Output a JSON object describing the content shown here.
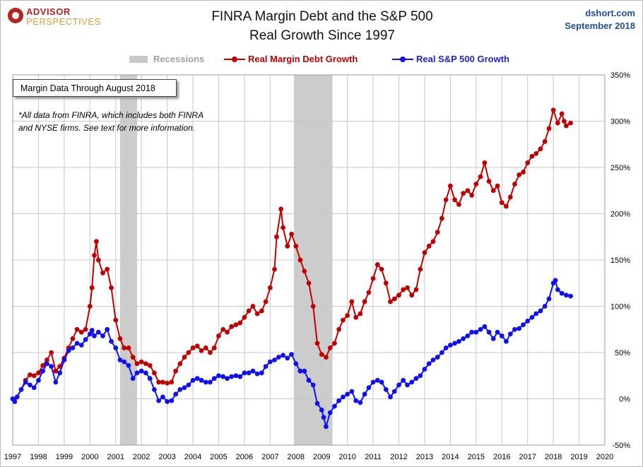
{
  "logo": {
    "line1": "ADVISOR",
    "line2": "PERSPECTIVES"
  },
  "title_line1": "FINRA Margin Debt and the S&P 500",
  "title_line2": "Real Growth Since 1997",
  "source_line1": "dshort.com",
  "source_line2": "September 2018",
  "legend": {
    "recessions": "Recessions",
    "margin": "Real Margin Debt Growth",
    "sp500": "Real S&P 500 Growth"
  },
  "info_box": "Margin Data Through August 2018",
  "note_line1": "*All data from FINRA, which includes both FINRA",
  "note_line2": "and NYSE firms. See text for more information.",
  "colors": {
    "margin": "#c00000",
    "sp500": "#1010ee",
    "recession": "#cccccc",
    "grid": "#c8c8c8"
  },
  "chart_data": {
    "type": "line",
    "x_tick_labels": [
      "1997",
      "1998",
      "1999",
      "2000",
      "2001",
      "2002",
      "2003",
      "2004",
      "2005",
      "2006",
      "2007",
      "2008",
      "2009",
      "2010",
      "2011",
      "2012",
      "2013",
      "2014",
      "2015",
      "2016",
      "2017",
      "2018",
      "2019",
      "2020"
    ],
    "xlim": [
      1997,
      2020
    ],
    "ylim": [
      -50,
      350
    ],
    "y_ticks": [
      -50,
      0,
      50,
      100,
      150,
      200,
      250,
      300,
      350
    ],
    "y_tick_labels": [
      "-50%",
      "0%",
      "50%",
      "100%",
      "150%",
      "200%",
      "250%",
      "300%",
      "350%"
    ],
    "grid": true,
    "legend_position": "top",
    "recessions": [
      [
        2001.17,
        2001.83
      ],
      [
        2007.92,
        2009.42
      ]
    ],
    "series": [
      {
        "name": "Real Margin Debt Growth",
        "key": "margin",
        "points": [
          [
            1997.0,
            0
          ],
          [
            1997.17,
            2
          ],
          [
            1997.33,
            10
          ],
          [
            1997.5,
            20
          ],
          [
            1997.67,
            26
          ],
          [
            1997.83,
            25
          ],
          [
            1998.0,
            28
          ],
          [
            1998.17,
            36
          ],
          [
            1998.33,
            42
          ],
          [
            1998.5,
            50
          ],
          [
            1998.67,
            30
          ],
          [
            1998.83,
            35
          ],
          [
            1999.0,
            44
          ],
          [
            1999.17,
            55
          ],
          [
            1999.33,
            65
          ],
          [
            1999.5,
            75
          ],
          [
            1999.67,
            72
          ],
          [
            1999.83,
            75
          ],
          [
            2000.0,
            100
          ],
          [
            2000.08,
            120
          ],
          [
            2000.17,
            155
          ],
          [
            2000.25,
            170
          ],
          [
            2000.33,
            150
          ],
          [
            2000.5,
            136
          ],
          [
            2000.67,
            140
          ],
          [
            2000.83,
            120
          ],
          [
            2001.0,
            85
          ],
          [
            2001.17,
            65
          ],
          [
            2001.33,
            55
          ],
          [
            2001.5,
            55
          ],
          [
            2001.67,
            45
          ],
          [
            2001.83,
            38
          ],
          [
            2002.0,
            40
          ],
          [
            2002.17,
            38
          ],
          [
            2002.33,
            36
          ],
          [
            2002.5,
            28
          ],
          [
            2002.67,
            18
          ],
          [
            2002.83,
            18
          ],
          [
            2003.0,
            17
          ],
          [
            2003.17,
            18
          ],
          [
            2003.33,
            30
          ],
          [
            2003.5,
            38
          ],
          [
            2003.67,
            45
          ],
          [
            2003.83,
            50
          ],
          [
            2004.0,
            55
          ],
          [
            2004.17,
            57
          ],
          [
            2004.33,
            52
          ],
          [
            2004.5,
            55
          ],
          [
            2004.67,
            50
          ],
          [
            2004.83,
            55
          ],
          [
            2005.0,
            68
          ],
          [
            2005.17,
            75
          ],
          [
            2005.33,
            72
          ],
          [
            2005.5,
            78
          ],
          [
            2005.67,
            80
          ],
          [
            2005.83,
            82
          ],
          [
            2006.0,
            88
          ],
          [
            2006.17,
            95
          ],
          [
            2006.33,
            100
          ],
          [
            2006.5,
            92
          ],
          [
            2006.67,
            95
          ],
          [
            2006.83,
            105
          ],
          [
            2007.0,
            120
          ],
          [
            2007.17,
            140
          ],
          [
            2007.25,
            175
          ],
          [
            2007.42,
            205
          ],
          [
            2007.5,
            185
          ],
          [
            2007.67,
            165
          ],
          [
            2007.83,
            178
          ],
          [
            2008.0,
            165
          ],
          [
            2008.17,
            150
          ],
          [
            2008.33,
            138
          ],
          [
            2008.5,
            125
          ],
          [
            2008.67,
            100
          ],
          [
            2008.83,
            60
          ],
          [
            2009.0,
            48
          ],
          [
            2009.17,
            45
          ],
          [
            2009.33,
            55
          ],
          [
            2009.5,
            60
          ],
          [
            2009.67,
            75
          ],
          [
            2009.83,
            85
          ],
          [
            2010.0,
            90
          ],
          [
            2010.17,
            105
          ],
          [
            2010.33,
            88
          ],
          [
            2010.5,
            92
          ],
          [
            2010.67,
            105
          ],
          [
            2010.83,
            115
          ],
          [
            2011.0,
            130
          ],
          [
            2011.17,
            145
          ],
          [
            2011.33,
            140
          ],
          [
            2011.5,
            125
          ],
          [
            2011.67,
            105
          ],
          [
            2011.83,
            108
          ],
          [
            2012.0,
            112
          ],
          [
            2012.17,
            118
          ],
          [
            2012.33,
            120
          ],
          [
            2012.5,
            112
          ],
          [
            2012.67,
            118
          ],
          [
            2012.83,
            140
          ],
          [
            2013.0,
            158
          ],
          [
            2013.17,
            165
          ],
          [
            2013.33,
            170
          ],
          [
            2013.5,
            180
          ],
          [
            2013.67,
            195
          ],
          [
            2013.83,
            215
          ],
          [
            2014.0,
            230
          ],
          [
            2014.17,
            215
          ],
          [
            2014.33,
            210
          ],
          [
            2014.5,
            222
          ],
          [
            2014.67,
            225
          ],
          [
            2014.83,
            220
          ],
          [
            2015.0,
            232
          ],
          [
            2015.17,
            240
          ],
          [
            2015.33,
            255
          ],
          [
            2015.5,
            235
          ],
          [
            2015.67,
            225
          ],
          [
            2015.83,
            230
          ],
          [
            2016.0,
            212
          ],
          [
            2016.17,
            208
          ],
          [
            2016.33,
            218
          ],
          [
            2016.5,
            232
          ],
          [
            2016.67,
            242
          ],
          [
            2016.83,
            245
          ],
          [
            2017.0,
            255
          ],
          [
            2017.17,
            262
          ],
          [
            2017.33,
            265
          ],
          [
            2017.5,
            270
          ],
          [
            2017.67,
            278
          ],
          [
            2017.83,
            292
          ],
          [
            2018.0,
            312
          ],
          [
            2018.17,
            298
          ],
          [
            2018.33,
            308
          ],
          [
            2018.42,
            300
          ],
          [
            2018.5,
            295
          ],
          [
            2018.67,
            298
          ]
        ]
      },
      {
        "name": "Real S&P 500 Growth",
        "key": "sp500",
        "points": [
          [
            1997.0,
            0
          ],
          [
            1997.08,
            -3
          ],
          [
            1997.17,
            2
          ],
          [
            1997.33,
            10
          ],
          [
            1997.5,
            18
          ],
          [
            1997.67,
            15
          ],
          [
            1997.83,
            12
          ],
          [
            1998.0,
            20
          ],
          [
            1998.17,
            30
          ],
          [
            1998.33,
            38
          ],
          [
            1998.5,
            35
          ],
          [
            1998.67,
            18
          ],
          [
            1998.83,
            28
          ],
          [
            1999.0,
            42
          ],
          [
            1999.17,
            52
          ],
          [
            1999.33,
            55
          ],
          [
            1999.5,
            60
          ],
          [
            1999.67,
            58
          ],
          [
            1999.83,
            64
          ],
          [
            2000.0,
            70
          ],
          [
            2000.08,
            74
          ],
          [
            2000.17,
            68
          ],
          [
            2000.33,
            72
          ],
          [
            2000.5,
            68
          ],
          [
            2000.67,
            75
          ],
          [
            2000.83,
            62
          ],
          [
            2001.0,
            55
          ],
          [
            2001.17,
            42
          ],
          [
            2001.33,
            40
          ],
          [
            2001.5,
            36
          ],
          [
            2001.67,
            22
          ],
          [
            2001.83,
            28
          ],
          [
            2002.0,
            30
          ],
          [
            2002.17,
            28
          ],
          [
            2002.33,
            22
          ],
          [
            2002.5,
            10
          ],
          [
            2002.67,
            -2
          ],
          [
            2002.83,
            2
          ],
          [
            2003.0,
            -3
          ],
          [
            2003.17,
            -2
          ],
          [
            2003.33,
            5
          ],
          [
            2003.5,
            10
          ],
          [
            2003.67,
            12
          ],
          [
            2003.83,
            15
          ],
          [
            2004.0,
            20
          ],
          [
            2004.17,
            22
          ],
          [
            2004.33,
            20
          ],
          [
            2004.5,
            18
          ],
          [
            2004.67,
            18
          ],
          [
            2004.83,
            22
          ],
          [
            2005.0,
            25
          ],
          [
            2005.17,
            24
          ],
          [
            2005.33,
            22
          ],
          [
            2005.5,
            24
          ],
          [
            2005.67,
            25
          ],
          [
            2005.83,
            24
          ],
          [
            2006.0,
            28
          ],
          [
            2006.17,
            28
          ],
          [
            2006.33,
            30
          ],
          [
            2006.5,
            27
          ],
          [
            2006.67,
            28
          ],
          [
            2006.83,
            35
          ],
          [
            2007.0,
            40
          ],
          [
            2007.17,
            42
          ],
          [
            2007.33,
            45
          ],
          [
            2007.5,
            47
          ],
          [
            2007.67,
            44
          ],
          [
            2007.83,
            48
          ],
          [
            2008.0,
            38
          ],
          [
            2008.17,
            30
          ],
          [
            2008.33,
            30
          ],
          [
            2008.5,
            20
          ],
          [
            2008.67,
            15
          ],
          [
            2008.83,
            -5
          ],
          [
            2009.0,
            -12
          ],
          [
            2009.08,
            -20
          ],
          [
            2009.17,
            -30
          ],
          [
            2009.33,
            -15
          ],
          [
            2009.5,
            -8
          ],
          [
            2009.67,
            -2
          ],
          [
            2009.83,
            2
          ],
          [
            2010.0,
            5
          ],
          [
            2010.17,
            8
          ],
          [
            2010.33,
            -2
          ],
          [
            2010.5,
            -4
          ],
          [
            2010.67,
            5
          ],
          [
            2010.83,
            12
          ],
          [
            2011.0,
            18
          ],
          [
            2011.17,
            20
          ],
          [
            2011.33,
            18
          ],
          [
            2011.5,
            10
          ],
          [
            2011.67,
            2
          ],
          [
            2011.83,
            8
          ],
          [
            2012.0,
            15
          ],
          [
            2012.17,
            20
          ],
          [
            2012.33,
            15
          ],
          [
            2012.5,
            18
          ],
          [
            2012.67,
            22
          ],
          [
            2012.83,
            25
          ],
          [
            2013.0,
            32
          ],
          [
            2013.17,
            38
          ],
          [
            2013.33,
            42
          ],
          [
            2013.5,
            45
          ],
          [
            2013.67,
            50
          ],
          [
            2013.83,
            55
          ],
          [
            2014.0,
            58
          ],
          [
            2014.17,
            60
          ],
          [
            2014.33,
            62
          ],
          [
            2014.5,
            65
          ],
          [
            2014.67,
            68
          ],
          [
            2014.83,
            72
          ],
          [
            2015.0,
            72
          ],
          [
            2015.17,
            75
          ],
          [
            2015.33,
            78
          ],
          [
            2015.5,
            72
          ],
          [
            2015.67,
            65
          ],
          [
            2015.83,
            72
          ],
          [
            2016.0,
            68
          ],
          [
            2016.17,
            62
          ],
          [
            2016.33,
            70
          ],
          [
            2016.5,
            75
          ],
          [
            2016.67,
            76
          ],
          [
            2016.83,
            80
          ],
          [
            2017.0,
            84
          ],
          [
            2017.17,
            88
          ],
          [
            2017.33,
            92
          ],
          [
            2017.5,
            95
          ],
          [
            2017.67,
            100
          ],
          [
            2017.83,
            108
          ],
          [
            2018.0,
            125
          ],
          [
            2018.08,
            128
          ],
          [
            2018.17,
            118
          ],
          [
            2018.33,
            114
          ],
          [
            2018.5,
            112
          ],
          [
            2018.67,
            111
          ]
        ]
      }
    ]
  }
}
